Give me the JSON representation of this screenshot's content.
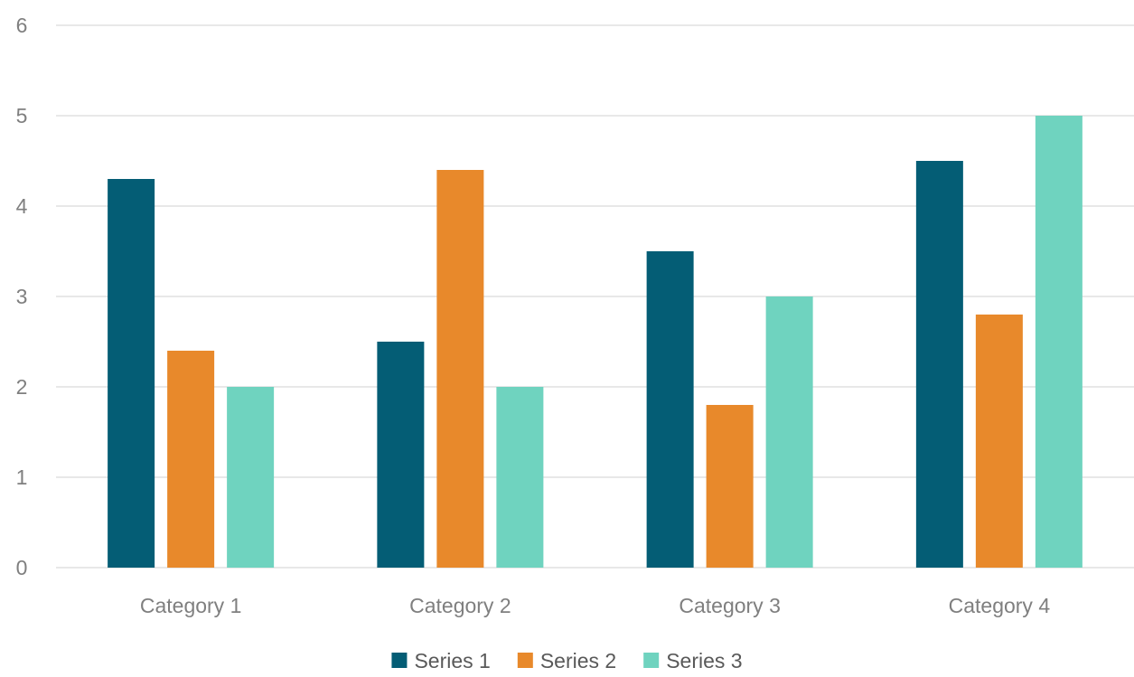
{
  "chart_data": {
    "type": "bar",
    "categories": [
      "Category 1",
      "Category 2",
      "Category 3",
      "Category 4"
    ],
    "series": [
      {
        "name": "Series 1",
        "values": [
          4.3,
          2.5,
          3.5,
          4.5
        ],
        "color": "#045d75"
      },
      {
        "name": "Series 2",
        "values": [
          2.4,
          4.4,
          1.8,
          2.8
        ],
        "color": "#e8892b"
      },
      {
        "name": "Series 3",
        "values": [
          2,
          2,
          3,
          5
        ],
        "color": "#6fd3bf"
      }
    ],
    "title": "",
    "xlabel": "",
    "ylabel": "",
    "ylim": [
      0,
      6
    ],
    "yticks": [
      "0",
      "1",
      "2",
      "3",
      "4",
      "5",
      "6"
    ],
    "grid": true,
    "legend": "bottom",
    "gridline_color": "#d9d9d9",
    "text_color": "#7f7f7f"
  }
}
